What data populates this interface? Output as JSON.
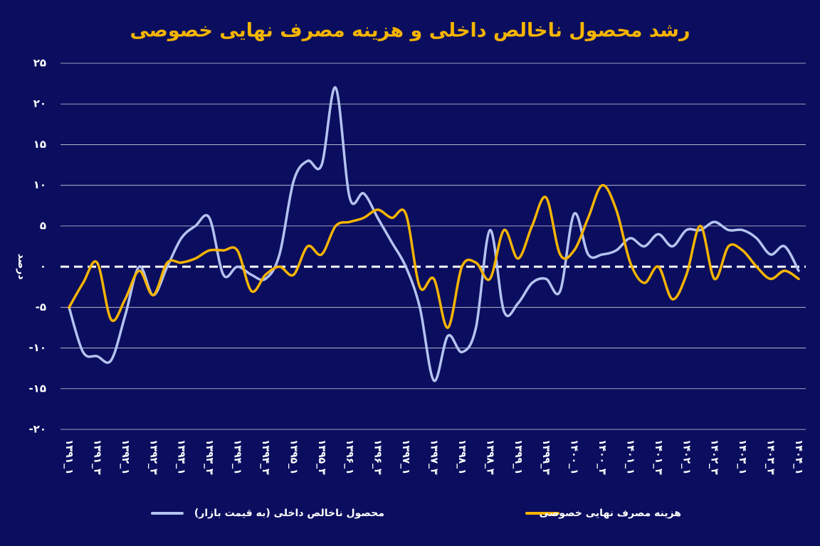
{
  "chart_data": {
    "type": "line",
    "title": "رشد محصول ناخالص داخلی و هزینه مصرف نهایی خصوصی",
    "y_label": "درصد",
    "categories": [
      "۱۳۹۱_۱",
      null,
      "۱۳۹۱_۳",
      null,
      "۱۳۹۲_۱",
      null,
      "۱۳۹۲_۳",
      null,
      "۱۳۹۳_۱",
      null,
      "۱۳۹۳_۳",
      null,
      "۱۳۹۴_۱",
      null,
      "۱۳۹۴_۳",
      null,
      "۱۳۹۵_۱",
      null,
      "۱۳۹۵_۳",
      null,
      "۱۳۹۶_۱",
      null,
      "۱۳۹۶_۳",
      null,
      "۱۳۹۷_۱",
      null,
      "۱۳۹۷_۳",
      null,
      "۱۳۹۸_۱",
      null,
      "۱۳۹۸_۳",
      null,
      "۱۳۹۹_۱",
      null,
      "۱۳۹۹_۳",
      null,
      "۱۴۰۰_۱",
      null,
      "۱۴۰۰_۳",
      null,
      "۱۴۰۱_۱",
      null,
      "۱۴۰۱_۳",
      null,
      "۱۴۰۲_۱",
      null,
      "۱۴۰۲_۳",
      null,
      "۱۴۰۳_۱",
      null,
      "۱۴۰۳_۳",
      null,
      "۱۴۰۴_۱"
    ],
    "series": [
      {
        "name": "محصول ناخالص داخلی (به قیمت بازار)",
        "color": "#b4c3f0",
        "values": [
          -5,
          -10.5,
          -11,
          -11.5,
          -6,
          0,
          -3.5,
          0,
          3.5,
          5,
          6,
          -1,
          0,
          -1,
          -1.5,
          1.5,
          10.5,
          13,
          12.5,
          22,
          8.5,
          9,
          6,
          3,
          0,
          -5,
          -14,
          -8.5,
          -10.5,
          -7.5,
          4.5,
          -5.5,
          -4.5,
          -2,
          -1.5,
          -3,
          6.5,
          1.5,
          1.5,
          2,
          3.5,
          2.5,
          4,
          2.5,
          4.5,
          4.5,
          5.5,
          4.5,
          4.5,
          3.5,
          1.5,
          2.5,
          -0.5
        ]
      },
      {
        "name": "هزینه مصرف نهایی خصوصی",
        "color": "#f5b400",
        "values": [
          -5,
          -2,
          0.5,
          -6.5,
          -4,
          -0.5,
          -3.5,
          0.5,
          0.5,
          1,
          2,
          2,
          2,
          -3,
          -1,
          0,
          -1,
          2.5,
          1.5,
          5,
          5.5,
          6,
          7,
          6,
          6.5,
          -2.5,
          -1.5,
          -7.5,
          0,
          0.5,
          -1.5,
          4.5,
          1,
          5,
          8.5,
          1.5,
          2,
          6,
          10,
          7,
          0.5,
          -2,
          0,
          -4,
          -1,
          5,
          -1.5,
          2.5,
          2,
          0,
          -1.5,
          -0.5,
          -1.5
        ]
      }
    ],
    "ylim": [
      -20,
      25
    ],
    "yticks": [
      {
        "value": -20,
        "label": "-۲۰"
      },
      {
        "value": -15,
        "label": "-۱۵"
      },
      {
        "value": -10,
        "label": "-۱۰"
      },
      {
        "value": -5,
        "label": "-۵"
      },
      {
        "value": 0,
        "label": "۰"
      },
      {
        "value": 5,
        "label": "۵"
      },
      {
        "value": 10,
        "label": "۱۰"
      },
      {
        "value": 15,
        "label": "۱۵"
      },
      {
        "value": 20,
        "label": "۲۰"
      },
      {
        "value": 25,
        "label": "۲۵"
      }
    ],
    "grid": true
  }
}
